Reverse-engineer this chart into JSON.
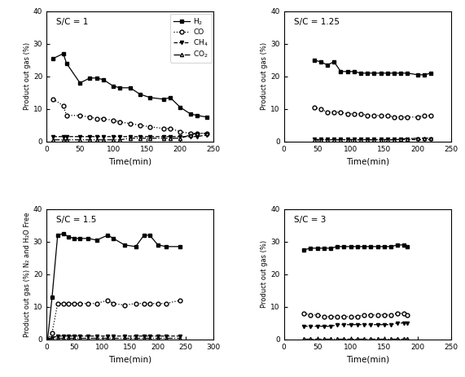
{
  "sc1": {
    "label": "S/C = 1",
    "H2": {
      "x": [
        10,
        25,
        30,
        50,
        65,
        75,
        85,
        100,
        110,
        125,
        140,
        155,
        175,
        185,
        200,
        215,
        225,
        240
      ],
      "y": [
        25.5,
        27,
        24,
        18,
        19.5,
        19.5,
        19,
        17,
        16.5,
        16.5,
        14.5,
        13.5,
        13,
        13.5,
        10.5,
        8.5,
        8,
        7.5
      ]
    },
    "CO": {
      "x": [
        10,
        25,
        30,
        50,
        65,
        75,
        85,
        100,
        110,
        125,
        140,
        155,
        175,
        185,
        200,
        215,
        225,
        240
      ],
      "y": [
        13,
        11,
        8,
        8,
        7.5,
        7,
        7,
        6.5,
        6,
        5.5,
        5,
        4.5,
        4,
        4,
        3,
        2.5,
        2.5,
        2.5
      ]
    },
    "CH4": {
      "x": [
        10,
        25,
        30,
        50,
        65,
        75,
        85,
        100,
        110,
        125,
        140,
        155,
        175,
        185,
        200,
        215,
        225,
        240
      ],
      "y": [
        1.5,
        1.5,
        1.5,
        1.5,
        1.5,
        1.5,
        1.5,
        1.5,
        1.5,
        1.5,
        1.5,
        1.5,
        1.5,
        1.5,
        1.5,
        1.5,
        1.5,
        2
      ]
    },
    "CO2": {
      "x": [
        10,
        25,
        30,
        50,
        65,
        75,
        85,
        100,
        110,
        125,
        140,
        155,
        175,
        185,
        200,
        215,
        225,
        240
      ],
      "y": [
        0.5,
        0.5,
        0.5,
        0.5,
        0.5,
        0.5,
        0.5,
        0.5,
        0.5,
        1,
        1,
        1,
        1,
        1,
        1,
        2,
        2.5,
        2.5
      ]
    },
    "ylim": [
      0,
      40
    ],
    "xlim": [
      0,
      250
    ],
    "xticks": [
      0,
      50,
      100,
      150,
      200,
      250
    ],
    "yticks": [
      0,
      10,
      20,
      30,
      40
    ],
    "ylabel": "Product out gas (%)"
  },
  "sc125": {
    "label": "S/C = 1.25",
    "H2": {
      "x": [
        45,
        55,
        65,
        75,
        85,
        95,
        105,
        115,
        125,
        135,
        145,
        155,
        165,
        175,
        185,
        200,
        210,
        220
      ],
      "y": [
        25,
        24.5,
        23.5,
        24.5,
        21.5,
        21.5,
        21.5,
        21,
        21,
        21,
        21,
        21,
        21,
        21,
        21,
        20.5,
        20.5,
        21
      ]
    },
    "CO": {
      "x": [
        45,
        55,
        65,
        75,
        85,
        95,
        105,
        115,
        125,
        135,
        145,
        155,
        165,
        175,
        185,
        200,
        210,
        220
      ],
      "y": [
        10.5,
        10,
        9,
        9,
        9,
        8.5,
        8.5,
        8.5,
        8,
        8,
        8,
        8,
        7.5,
        7.5,
        7.5,
        7.5,
        8,
        8
      ]
    },
    "CH4": {
      "x": [
        45,
        55,
        65,
        75,
        85,
        95,
        105,
        115,
        125,
        135,
        145,
        155,
        165,
        175,
        185,
        200,
        210,
        220
      ],
      "y": [
        0.8,
        0.8,
        0.8,
        0.8,
        0.8,
        0.8,
        0.8,
        0.8,
        0.8,
        0.8,
        0.8,
        0.8,
        0.8,
        0.8,
        0.8,
        0.8,
        0.8,
        0.8
      ]
    },
    "CO2": {
      "x": [
        45,
        55,
        65,
        75,
        85,
        95,
        105,
        115,
        125,
        135,
        145,
        155,
        165,
        175,
        185,
        200,
        210,
        220
      ],
      "y": [
        0.5,
        0.5,
        0.5,
        0.5,
        0.5,
        0.5,
        0.5,
        0.5,
        0.5,
        0.5,
        0.5,
        0.5,
        0.5,
        0.8,
        0.8,
        1,
        1,
        1
      ]
    },
    "ylim": [
      0,
      40
    ],
    "xlim": [
      0,
      250
    ],
    "xticks": [
      0,
      50,
      100,
      150,
      200,
      250
    ],
    "yticks": [
      0,
      10,
      20,
      30,
      40
    ],
    "ylabel": "Product out gas (%)"
  },
  "sc15": {
    "label": "S/C = 1.5",
    "H2": {
      "x": [
        2,
        10,
        20,
        30,
        40,
        50,
        60,
        75,
        90,
        110,
        120,
        140,
        160,
        175,
        185,
        200,
        215,
        240
      ],
      "y": [
        0,
        13,
        32,
        32.5,
        31.5,
        31,
        31,
        31,
        30.5,
        32,
        31,
        29,
        28.5,
        32,
        32,
        29,
        28.5,
        28.5
      ]
    },
    "CO": {
      "x": [
        2,
        10,
        20,
        30,
        40,
        50,
        60,
        75,
        90,
        110,
        120,
        140,
        160,
        175,
        185,
        200,
        215,
        240
      ],
      "y": [
        0,
        2,
        11,
        11,
        11,
        11,
        11,
        11,
        11,
        12,
        11,
        10.5,
        11,
        11,
        11,
        11,
        11,
        12
      ]
    },
    "CH4": {
      "x": [
        2,
        10,
        20,
        30,
        40,
        50,
        60,
        75,
        90,
        110,
        120,
        140,
        160,
        175,
        185,
        200,
        215,
        240
      ],
      "y": [
        0,
        0.5,
        1,
        1,
        1,
        1,
        1,
        1,
        1,
        1,
        1,
        1,
        1,
        1,
        1,
        1,
        1,
        1
      ]
    },
    "CO2": {
      "x": [
        2,
        10,
        20,
        30,
        40,
        50,
        60,
        75,
        90,
        110,
        120,
        140,
        160,
        175,
        185,
        200,
        215,
        240
      ],
      "y": [
        0,
        0.3,
        0.3,
        0.3,
        0.3,
        0.3,
        0.3,
        0.3,
        0.3,
        0.3,
        0.3,
        0.3,
        0.3,
        0.3,
        0.3,
        0.3,
        0.3,
        0.3
      ]
    },
    "ylim": [
      0,
      40
    ],
    "xlim": [
      0,
      300
    ],
    "xticks": [
      0,
      50,
      100,
      150,
      200,
      250,
      300
    ],
    "yticks": [
      0,
      10,
      20,
      30,
      40
    ],
    "ylabel": "Product out gas (%) N₂ and H₂O Free"
  },
  "sc3": {
    "label": "S/C = 3",
    "H2": {
      "x": [
        30,
        40,
        50,
        60,
        70,
        80,
        90,
        100,
        110,
        120,
        130,
        140,
        150,
        160,
        170,
        180,
        185
      ],
      "y": [
        27.5,
        28,
        28,
        28,
        28,
        28.5,
        28.5,
        28.5,
        28.5,
        28.5,
        28.5,
        28.5,
        28.5,
        28.5,
        29,
        29,
        28.5
      ]
    },
    "CO": {
      "x": [
        30,
        40,
        50,
        60,
        70,
        80,
        90,
        100,
        110,
        120,
        130,
        140,
        150,
        160,
        170,
        180,
        185
      ],
      "y": [
        8,
        7.5,
        7.5,
        7,
        7,
        7,
        7,
        7,
        7,
        7.5,
        7.5,
        7.5,
        7.5,
        7.5,
        8,
        8,
        7.5
      ]
    },
    "CH4": {
      "x": [
        30,
        40,
        50,
        60,
        70,
        80,
        90,
        100,
        110,
        120,
        130,
        140,
        150,
        160,
        170,
        180,
        185
      ],
      "y": [
        4,
        4,
        4,
        4,
        4,
        4.5,
        4.5,
        4.5,
        4.5,
        4.5,
        4.5,
        4.5,
        4.5,
        4.5,
        5,
        5,
        5
      ]
    },
    "CO2": {
      "x": [
        30,
        40,
        50,
        60,
        70,
        80,
        90,
        100,
        110,
        120,
        130,
        140,
        150,
        160,
        170,
        180,
        185
      ],
      "y": [
        0.2,
        0.2,
        0.2,
        0.2,
        0.2,
        0.2,
        0.2,
        0.2,
        0.2,
        0.2,
        0.2,
        0.2,
        0.2,
        0.2,
        0.2,
        0.2,
        0.2
      ]
    },
    "ylim": [
      0,
      40
    ],
    "xlim": [
      0,
      250
    ],
    "xticks": [
      0,
      50,
      100,
      150,
      200,
      250
    ],
    "yticks": [
      0,
      10,
      20,
      30,
      40
    ],
    "ylabel": "Product out gas (%)"
  }
}
